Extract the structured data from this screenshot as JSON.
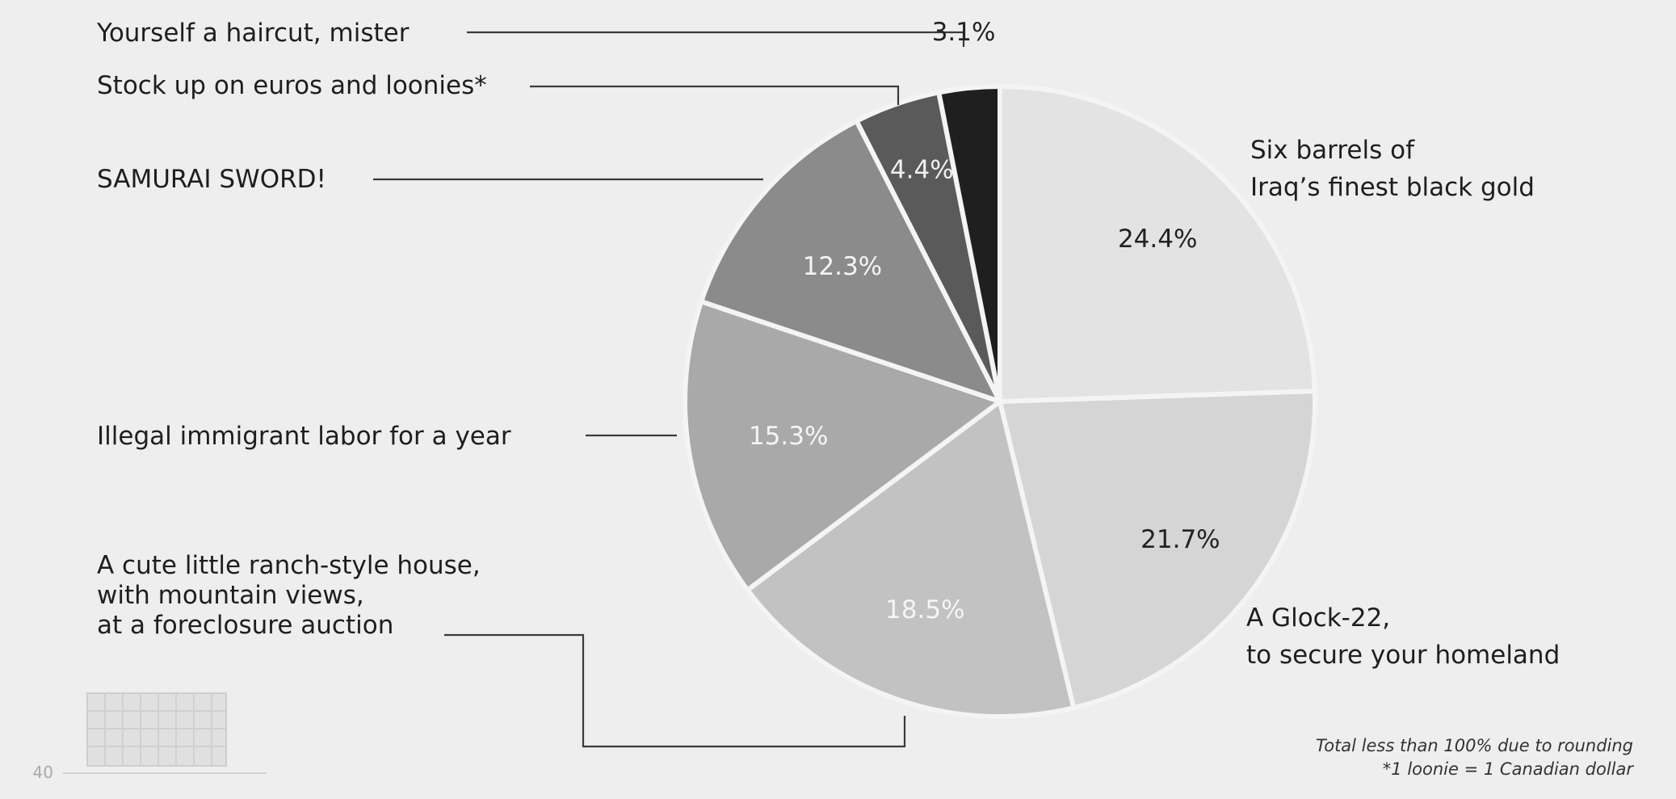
{
  "chart_data": {
    "type": "pie",
    "slices": [
      {
        "pct_label": "24.4%",
        "value": 24.4,
        "label_lines": [
          "Six barrels of",
          "Iraq’s finest black gold"
        ],
        "color": "#e3e3e3",
        "pct_color": "#222222"
      },
      {
        "pct_label": "21.7%",
        "value": 21.7,
        "label_lines": [
          "A Glock-22,",
          "to secure your homeland"
        ],
        "color": "#d5d5d5",
        "pct_color": "#222222"
      },
      {
        "pct_label": "18.5%",
        "value": 18.5,
        "label_lines": [
          "A cute little ranch-style house,",
          "with mountain views,",
          "at a foreclosure auction"
        ],
        "color": "#c2c2c2",
        "pct_color": "#f5f5f5"
      },
      {
        "pct_label": "15.3%",
        "value": 15.3,
        "label_lines": [
          "Illegal immigrant labor for a year"
        ],
        "color": "#a9a9a9",
        "pct_color": "#f5f5f5"
      },
      {
        "pct_label": "12.3%",
        "value": 12.3,
        "label_lines": [
          "SAMURAI SWORD!"
        ],
        "color": "#8b8b8b",
        "pct_color": "#f5f5f5"
      },
      {
        "pct_label": "4.4%",
        "value": 4.4,
        "label_lines": [
          "Stock up on euros and loonies*"
        ],
        "color": "#5a5a5a",
        "pct_color": "#f0f0f0"
      },
      {
        "pct_label": "3.1%",
        "value": 3.1,
        "label_lines": [
          "Yourself a haircut, mister"
        ],
        "color": "#1f1f1f",
        "pct_color": "#222222"
      }
    ],
    "notes": [
      "Total less than 100% due to rounding",
      "*1 loonie = 1 Canadian dollar"
    ],
    "page_number": "40"
  }
}
